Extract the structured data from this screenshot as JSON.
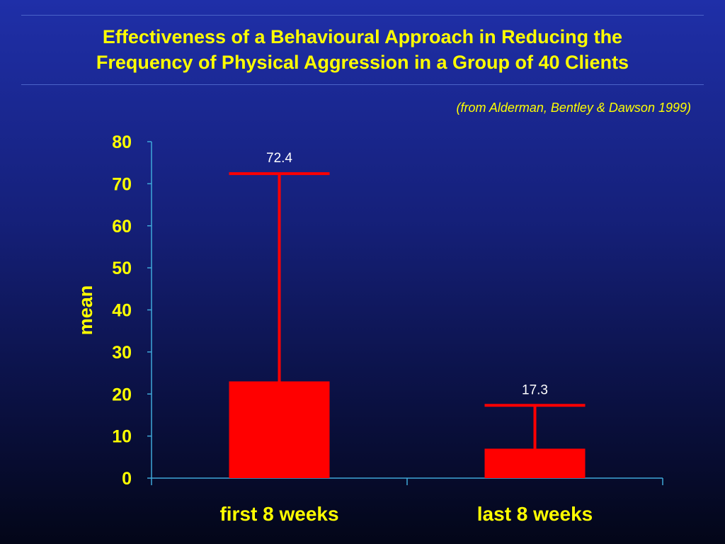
{
  "slide": {
    "title_line1": "Effectiveness of a Behavioural Approach in Reducing the",
    "title_line2": "Frequency of Physical Aggression in a Group of 40 Clients",
    "source": "(from Alderman, Bentley & Dawson 1999)"
  },
  "colors": {
    "bar": "#ff0000",
    "text": "#ffff00",
    "axis": "#3fa8d8",
    "data_label": "#ffffff"
  },
  "chart_data": {
    "type": "bar",
    "categories": [
      "first 8 weeks",
      "last 8 weeks"
    ],
    "values": [
      23,
      7
    ],
    "error_upper": [
      72.4,
      17.3
    ],
    "data_labels": [
      "72.4",
      "17.3"
    ],
    "ylabel": "mean",
    "ylim": [
      0,
      80
    ],
    "yticks": [
      0,
      10,
      20,
      30,
      40,
      50,
      60,
      70,
      80
    ],
    "grid": false,
    "legend": "none"
  }
}
